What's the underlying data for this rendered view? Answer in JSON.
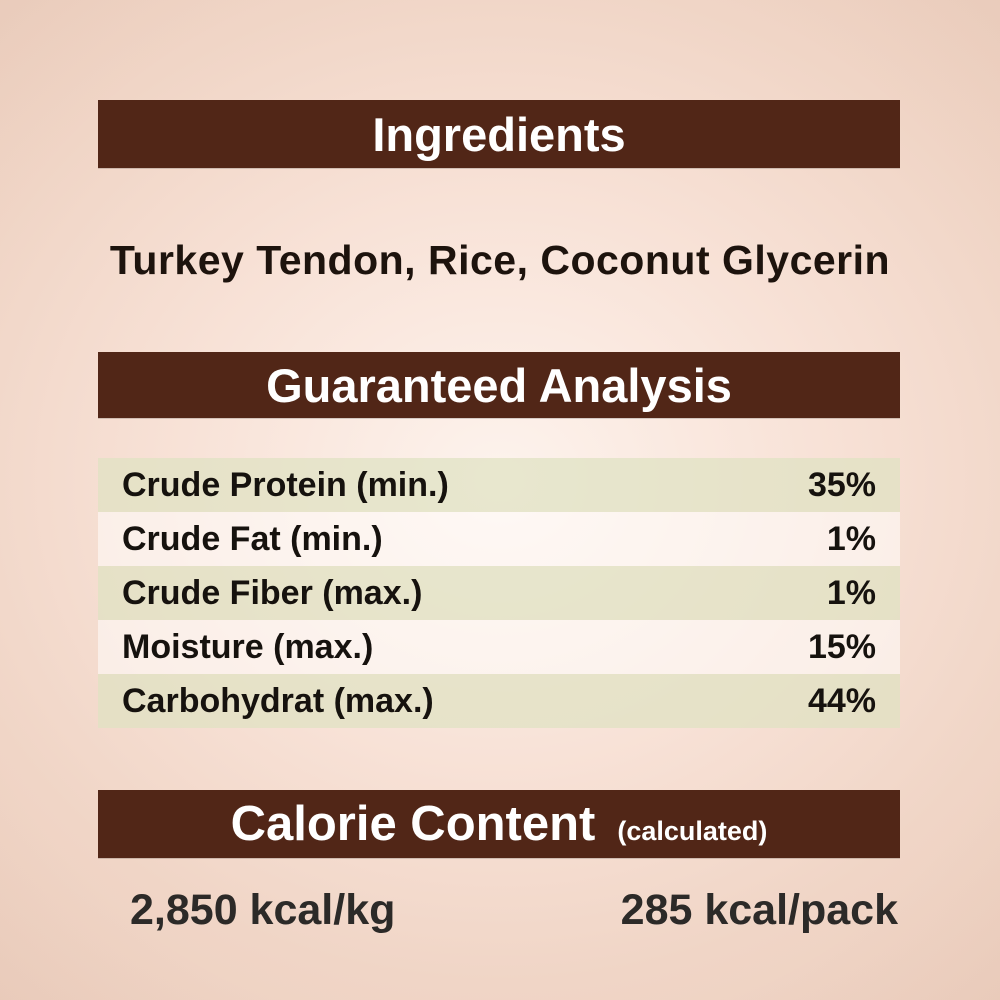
{
  "page": {
    "bar_color": "#512617",
    "background_center": "#fdf3ed",
    "background_edge": "#eccfbf"
  },
  "ingredients": {
    "title": "Ingredients",
    "content": "Turkey Tendon, Rice, Coconut Glycerin"
  },
  "guaranteed_analysis": {
    "title": "Guaranteed Analysis",
    "rows": [
      {
        "label": "Crude Protein (min.)",
        "value": "35%"
      },
      {
        "label": "Crude Fat (min.)",
        "value": "1%"
      },
      {
        "label": "Crude Fiber (max.)",
        "value": "1%"
      },
      {
        "label": "Moisture (max.)",
        "value": "15%"
      },
      {
        "label": "Carbohydrat (max.)",
        "value": "44%"
      }
    ]
  },
  "calorie_content": {
    "title": "Calorie Content",
    "subtitle": "(calculated)",
    "per_kg": "2,850 kcal/kg",
    "per_pack": "285 kcal/pack"
  }
}
